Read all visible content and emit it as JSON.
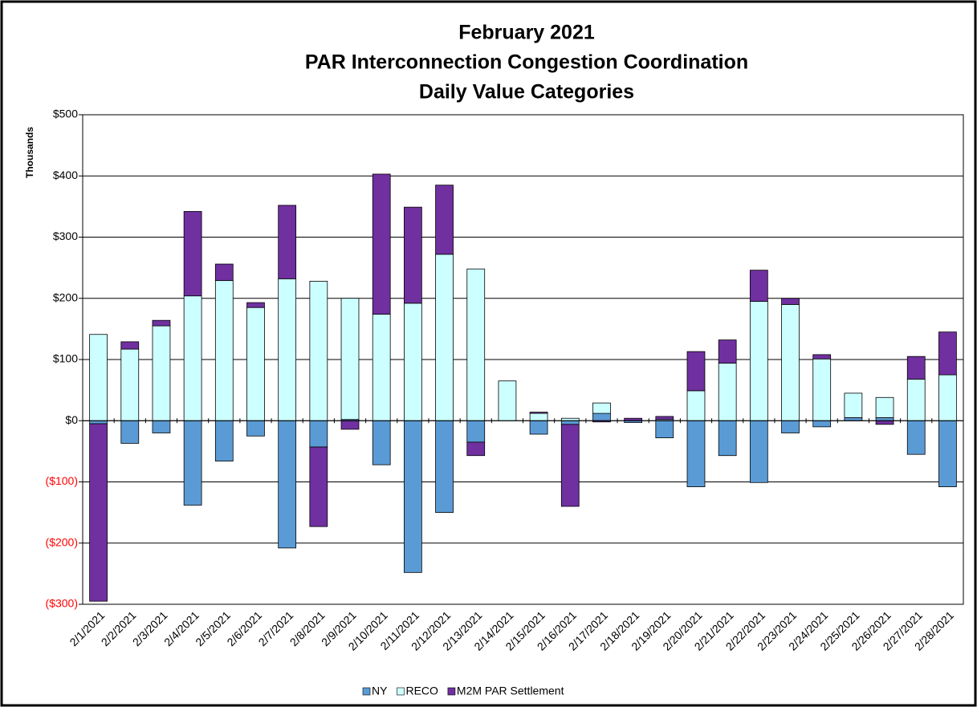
{
  "chart_data": {
    "type": "stacked_bar",
    "title": [
      "February 2021",
      "PAR Interconnection Congestion Coordination",
      "Daily Value Categories"
    ],
    "y_label": "Thousands",
    "categories": [
      "2/1/2021",
      "2/2/2021",
      "2/3/2021",
      "2/4/2021",
      "2/5/2021",
      "2/6/2021",
      "2/7/2021",
      "2/8/2021",
      "2/9/2021",
      "2/10/2021",
      "2/11/2021",
      "2/12/2021",
      "2/13/2021",
      "2/14/2021",
      "2/15/2021",
      "2/16/2021",
      "2/17/2021",
      "2/18/2021",
      "2/19/2021",
      "2/20/2021",
      "2/21/2021",
      "2/22/2021",
      "2/23/2021",
      "2/24/2021",
      "2/25/2021",
      "2/26/2021",
      "2/27/2021",
      "2/28/2021"
    ],
    "series": [
      {
        "name": "NY",
        "color": "#5b9bd5",
        "values": [
          -5,
          -37,
          -20,
          -138,
          -66,
          -25,
          -208,
          -43,
          2,
          -72,
          -248,
          -150,
          -35,
          0,
          -22,
          -6,
          12,
          -3,
          -28,
          -108,
          -57,
          -101,
          -20,
          -10,
          5,
          5,
          -55,
          -108
        ]
      },
      {
        "name": "RECO",
        "color": "#ccffff",
        "values": [
          141,
          117,
          155,
          204,
          229,
          185,
          232,
          228,
          198,
          174,
          192,
          272,
          248,
          65,
          12,
          4,
          17,
          0,
          2,
          49,
          94,
          195,
          190,
          101,
          40,
          33,
          68,
          75
        ]
      },
      {
        "name": "M2M PAR Settlement",
        "color": "#7030a0",
        "values": [
          -290,
          12,
          9,
          138,
          27,
          8,
          120,
          -130,
          -14,
          229,
          157,
          113,
          -22,
          0,
          2,
          -134,
          -2,
          4,
          5,
          64,
          38,
          51,
          10,
          7,
          0,
          -6,
          37,
          70
        ]
      }
    ],
    "ylim": [
      -300,
      500
    ],
    "yticks": [
      {
        "value": -300,
        "label": "($300)"
      },
      {
        "value": -200,
        "label": "($200)"
      },
      {
        "value": -100,
        "label": "($100)"
      },
      {
        "value": 0,
        "label": "$0"
      },
      {
        "value": 100,
        "label": "$100"
      },
      {
        "value": 200,
        "label": "$200"
      },
      {
        "value": 300,
        "label": "$300"
      },
      {
        "value": 400,
        "label": "$400"
      },
      {
        "value": 500,
        "label": "$500"
      }
    ],
    "negative_label_color": "#ff0000",
    "grid": true
  }
}
